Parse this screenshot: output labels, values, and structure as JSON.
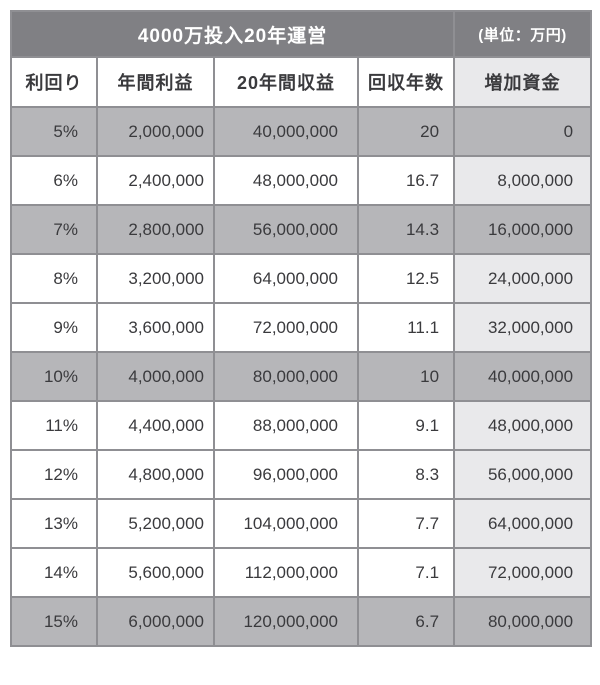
{
  "chart_data": {
    "type": "table",
    "title": "4000万投入20年運営",
    "unit_label": "(単位：万円)",
    "columns": [
      "利回り",
      "年間利益",
      "20年間収益",
      "回収年数",
      "増加資金"
    ],
    "column_keys": [
      "yield",
      "annual-profit",
      "revenue-20y",
      "payback-years",
      "increased-capital"
    ],
    "rows": [
      {
        "highlight": true,
        "cells": [
          "5%",
          "2,000,000",
          "40,000,000",
          "20",
          "0"
        ]
      },
      {
        "highlight": false,
        "cells": [
          "6%",
          "2,400,000",
          "48,000,000",
          "16.7",
          "8,000,000"
        ]
      },
      {
        "highlight": true,
        "cells": [
          "7%",
          "2,800,000",
          "56,000,000",
          "14.3",
          "16,000,000"
        ]
      },
      {
        "highlight": false,
        "cells": [
          "8%",
          "3,200,000",
          "64,000,000",
          "12.5",
          "24,000,000"
        ]
      },
      {
        "highlight": false,
        "cells": [
          "9%",
          "3,600,000",
          "72,000,000",
          "11.1",
          "32,000,000"
        ]
      },
      {
        "highlight": true,
        "cells": [
          "10%",
          "4,000,000",
          "80,000,000",
          "10",
          "40,000,000"
        ]
      },
      {
        "highlight": false,
        "cells": [
          "11%",
          "4,400,000",
          "88,000,000",
          "9.1",
          "48,000,000"
        ]
      },
      {
        "highlight": false,
        "cells": [
          "12%",
          "4,800,000",
          "96,000,000",
          "8.3",
          "56,000,000"
        ]
      },
      {
        "highlight": false,
        "cells": [
          "13%",
          "5,200,000",
          "104,000,000",
          "7.7",
          "64,000,000"
        ]
      },
      {
        "highlight": false,
        "cells": [
          "14%",
          "5,600,000",
          "112,000,000",
          "7.1",
          "72,000,000"
        ]
      },
      {
        "highlight": true,
        "cells": [
          "15%",
          "6,000,000",
          "120,000,000",
          "6.7",
          "80,000,000"
        ]
      }
    ],
    "layout_hints": {
      "highlighted_yields": [
        "5%",
        "7%",
        "10%",
        "15%"
      ],
      "numeric_alignment": "right",
      "accent_column": "増加資金"
    }
  },
  "colors": {
    "header_bg": "#808084",
    "header_text": "#ffffff",
    "hl_row_bg": "#b6b6b9",
    "accent_col_bg": "#e9e9eb",
    "border": "#8f8f93",
    "text": "#3a3a3d",
    "page_bg": "#ffffff"
  }
}
